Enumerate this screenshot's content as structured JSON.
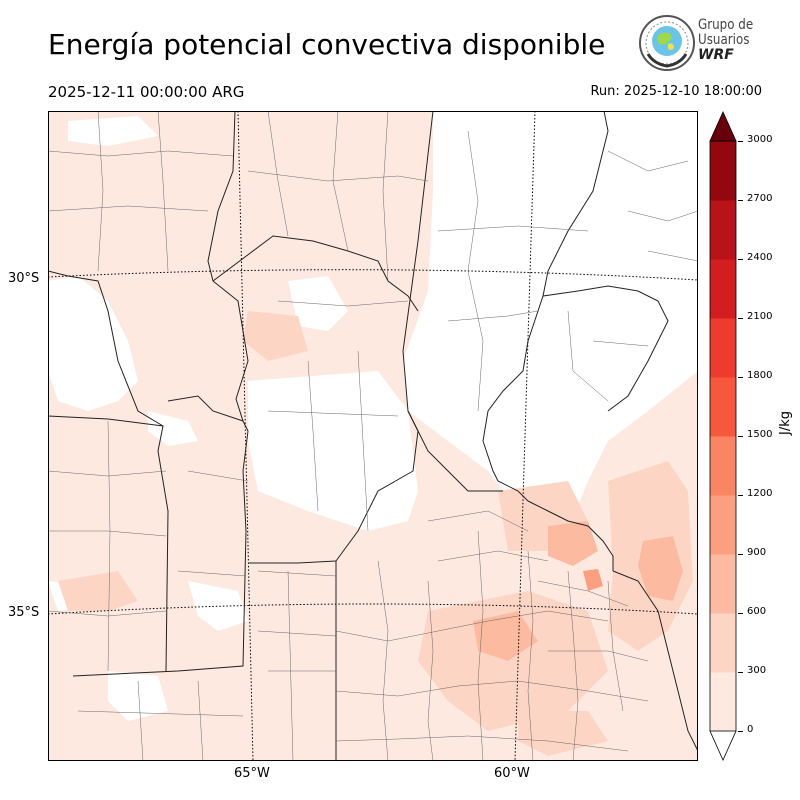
{
  "header": {
    "title": "Energía potencial convectiva disponible",
    "valid_time": "2025-12-11 00:00:00 ARG",
    "run_time": "Run: 2025-12-10 18:00:00"
  },
  "logo": {
    "line1": "Grupo de",
    "line2": "Usuarios",
    "line3": "WRF"
  },
  "map": {
    "lat_labels": [
      "30°S",
      "35°S"
    ],
    "lon_labels": [
      "65°W",
      "60°W"
    ]
  },
  "colorbar": {
    "label": "J/kg",
    "ticks": [
      "0",
      "300",
      "600",
      "900",
      "1200",
      "1500",
      "1800",
      "2100",
      "2400",
      "2700",
      "3000"
    ],
    "colors": [
      "#fee9e1",
      "#fdd5c4",
      "#fcbba1",
      "#fc9f81",
      "#fb8464",
      "#f6583e",
      "#ed3b2d",
      "#d21e20",
      "#b71319",
      "#93070f",
      "#67000d"
    ]
  }
}
